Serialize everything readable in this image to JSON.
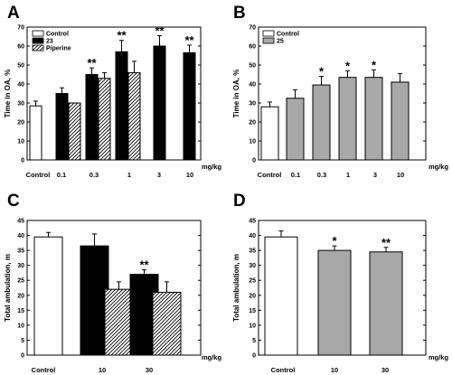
{
  "colors": {
    "black": "#000000",
    "gray": "#a8a8a8",
    "white": "#ffffff",
    "hatch": "#000000"
  },
  "chart_data": [
    {
      "panel": "A",
      "type": "bar",
      "ylabel": "Time in OA, %",
      "xunit": "mg/kg",
      "ylim": [
        0,
        70
      ],
      "yticks": [
        0,
        10,
        20,
        30,
        40,
        50,
        60,
        70
      ],
      "categories": [
        "Control",
        "0.1",
        "0.3",
        "1",
        "3",
        "10"
      ],
      "legend": [
        "Control",
        "23",
        "Piperine"
      ],
      "legend_position": "top-left",
      "series": [
        {
          "name": "Control",
          "style": "white",
          "points": [
            {
              "category": "Control",
              "value": 28.5,
              "error": 2.5
            }
          ]
        },
        {
          "name": "23",
          "style": "black",
          "points": [
            {
              "category": "0.1",
              "value": 35,
              "error": 3
            },
            {
              "category": "0.3",
              "value": 45,
              "error": 3.5,
              "sig": "**"
            },
            {
              "category": "1",
              "value": 57,
              "error": 6,
              "sig": "**"
            },
            {
              "category": "3",
              "value": 60,
              "error": 5.5,
              "sig": "**"
            },
            {
              "category": "10",
              "value": 56.5,
              "error": 4,
              "sig": "**"
            }
          ]
        },
        {
          "name": "Piperine",
          "style": "hatch",
          "points": [
            {
              "category": "0.1",
              "value": 30,
              "error": 0
            },
            {
              "category": "0.3",
              "value": 43,
              "error": 3
            },
            {
              "category": "1",
              "value": 46,
              "error": 6
            }
          ]
        }
      ]
    },
    {
      "panel": "B",
      "type": "bar",
      "ylabel": "Time in OA, %",
      "xunit": "mg/kg",
      "ylim": [
        0,
        70
      ],
      "yticks": [
        0,
        10,
        20,
        30,
        40,
        50,
        60,
        70
      ],
      "categories": [
        "Control",
        "0.1",
        "0.3",
        "1",
        "3",
        "10"
      ],
      "legend": [
        "Control",
        "25"
      ],
      "legend_position": "top-left",
      "series": [
        {
          "name": "Control",
          "style": "white",
          "points": [
            {
              "category": "Control",
              "value": 28,
              "error": 2.5
            }
          ]
        },
        {
          "name": "25",
          "style": "gray",
          "points": [
            {
              "category": "0.1",
              "value": 32.5,
              "error": 4.5
            },
            {
              "category": "0.3",
              "value": 39.5,
              "error": 4.5,
              "sig": "*"
            },
            {
              "category": "1",
              "value": 43.5,
              "error": 3.5,
              "sig": "*"
            },
            {
              "category": "3",
              "value": 43.5,
              "error": 4,
              "sig": "*"
            },
            {
              "category": "10",
              "value": 41,
              "error": 4.5
            }
          ]
        }
      ]
    },
    {
      "panel": "C",
      "type": "bar",
      "ylabel": "Total ambulation, m",
      "xunit": "mg/kg",
      "ylim": [
        0,
        45
      ],
      "yticks": [
        0,
        5,
        10,
        15,
        20,
        25,
        30,
        35,
        40,
        45
      ],
      "categories": [
        "Control",
        "10",
        "30"
      ],
      "series": [
        {
          "name": "Control",
          "style": "white",
          "points": [
            {
              "category": "Control",
              "value": 39.5,
              "error": 1.5
            }
          ]
        },
        {
          "name": "23",
          "style": "black",
          "points": [
            {
              "category": "10",
              "value": 36.5,
              "error": 4
            },
            {
              "category": "30",
              "value": 27,
              "error": 1.5,
              "sig": "**"
            }
          ]
        },
        {
          "name": "Piperine",
          "style": "hatch",
          "points": [
            {
              "category": "10",
              "value": 22,
              "error": 2.5
            },
            {
              "category": "30",
              "value": 21,
              "error": 3.5
            }
          ]
        }
      ]
    },
    {
      "panel": "D",
      "type": "bar",
      "ylabel": "Total ambulation, m",
      "xunit": "mg/kg",
      "ylim": [
        0,
        45
      ],
      "yticks": [
        0,
        5,
        10,
        15,
        20,
        25,
        30,
        35,
        40,
        45
      ],
      "categories": [
        "Control",
        "10",
        "30"
      ],
      "series": [
        {
          "name": "Control",
          "style": "white",
          "points": [
            {
              "category": "Control",
              "value": 39.5,
              "error": 2
            }
          ]
        },
        {
          "name": "25",
          "style": "gray",
          "points": [
            {
              "category": "10",
              "value": 35,
              "error": 1.5,
              "sig": "*"
            },
            {
              "category": "30",
              "value": 34.5,
              "error": 1.5,
              "sig": "**"
            }
          ]
        }
      ]
    }
  ]
}
